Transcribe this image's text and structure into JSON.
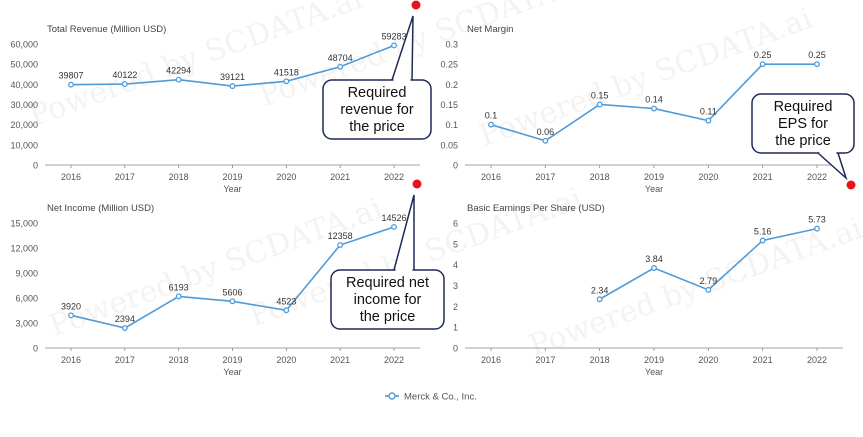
{
  "watermark_text": "Powered by SCDATA.ai",
  "colors": {
    "series": "#4f9bd9",
    "axis_text": "#555555",
    "title_text": "#444444",
    "grid": "#e6e6e6",
    "marker_red": "#e8141b",
    "callout_border": "#1f2a56",
    "label_text": "#333333"
  },
  "legend": {
    "series_name": "Merck & Co., Inc.",
    "icon": "circle-marker-icon"
  },
  "chart_data": [
    {
      "type": "line",
      "title": "Total Revenue (Million USD)",
      "xlabel": "Year",
      "ylabel": "",
      "categories": [
        "2016",
        "2017",
        "2018",
        "2019",
        "2020",
        "2021",
        "2022"
      ],
      "series": [
        {
          "name": "Merck & Co., Inc.",
          "values": [
            39807,
            40122,
            42294,
            39121,
            41518,
            48704,
            59283
          ]
        }
      ],
      "data_labels": [
        "39807",
        "40122",
        "42294",
        "39121",
        "41518",
        "48704",
        "59283"
      ],
      "ylim": [
        0,
        60000
      ],
      "yticks": [
        0,
        10000,
        20000,
        30000,
        40000,
        50000,
        60000
      ],
      "ytick_labels": [
        "0",
        "10,000",
        "20,000",
        "30,000",
        "40,000",
        "50,000",
        "60,000"
      ],
      "grid": false,
      "annotation": {
        "text_lines": [
          "Required",
          "revenue for",
          "the price"
        ]
      }
    },
    {
      "type": "line",
      "title": "Net Margin",
      "xlabel": "Year",
      "ylabel": "",
      "categories": [
        "2016",
        "2017",
        "2018",
        "2019",
        "2020",
        "2021",
        "2022"
      ],
      "series": [
        {
          "name": "Merck & Co., Inc.",
          "values": [
            0.1,
            0.06,
            0.15,
            0.14,
            0.11,
            0.25,
            0.25
          ]
        }
      ],
      "data_labels": [
        "0.1",
        "0.06",
        "0.15",
        "0.14",
        "0.11",
        "0.25",
        "0.25"
      ],
      "ylim": [
        0,
        0.3
      ],
      "yticks": [
        0,
        0.05,
        0.1,
        0.15,
        0.2,
        0.25,
        0.3
      ],
      "ytick_labels": [
        "0",
        "0.05",
        "0.1",
        "0.15",
        "0.2",
        "0.25",
        "0.3"
      ],
      "grid": false,
      "annotation": {
        "text_lines": [
          "Required",
          "EPS for",
          "the price"
        ]
      }
    },
    {
      "type": "line",
      "title": "Net Income (Million USD)",
      "xlabel": "Year",
      "ylabel": "",
      "categories": [
        "2016",
        "2017",
        "2018",
        "2019",
        "2020",
        "2021",
        "2022"
      ],
      "series": [
        {
          "name": "Merck & Co., Inc.",
          "values": [
            3920,
            2394,
            6193,
            5606,
            4523,
            12358,
            14526
          ]
        }
      ],
      "data_labels": [
        "3920",
        "2394",
        "6193",
        "5606",
        "4523",
        "12358",
        "14526"
      ],
      "ylim": [
        0,
        15000
      ],
      "yticks": [
        0,
        3000,
        6000,
        9000,
        12000,
        15000
      ],
      "ytick_labels": [
        "0",
        "3,000",
        "6,000",
        "9,000",
        "12,000",
        "15,000"
      ],
      "grid": false,
      "annotation": {
        "text_lines": [
          "Required net",
          "income for",
          "the price"
        ]
      }
    },
    {
      "type": "line",
      "title": "Basic Earnings Per Share (USD)",
      "xlabel": "Year",
      "ylabel": "",
      "categories": [
        "2016",
        "2017",
        "2018",
        "2019",
        "2020",
        "2021",
        "2022"
      ],
      "series": [
        {
          "name": "Merck & Co., Inc.",
          "values": [
            null,
            null,
            2.34,
            3.84,
            2.79,
            5.16,
            5.73
          ]
        }
      ],
      "data_labels": [
        null,
        null,
        "2.34",
        "3.84",
        "2.79",
        "5.16",
        "5.73"
      ],
      "ylim": [
        0,
        6
      ],
      "yticks": [
        0,
        1,
        2,
        3,
        4,
        5,
        6
      ],
      "ytick_labels": [
        "0",
        "1",
        "2",
        "3",
        "4",
        "5",
        "6"
      ],
      "grid": false
    }
  ]
}
